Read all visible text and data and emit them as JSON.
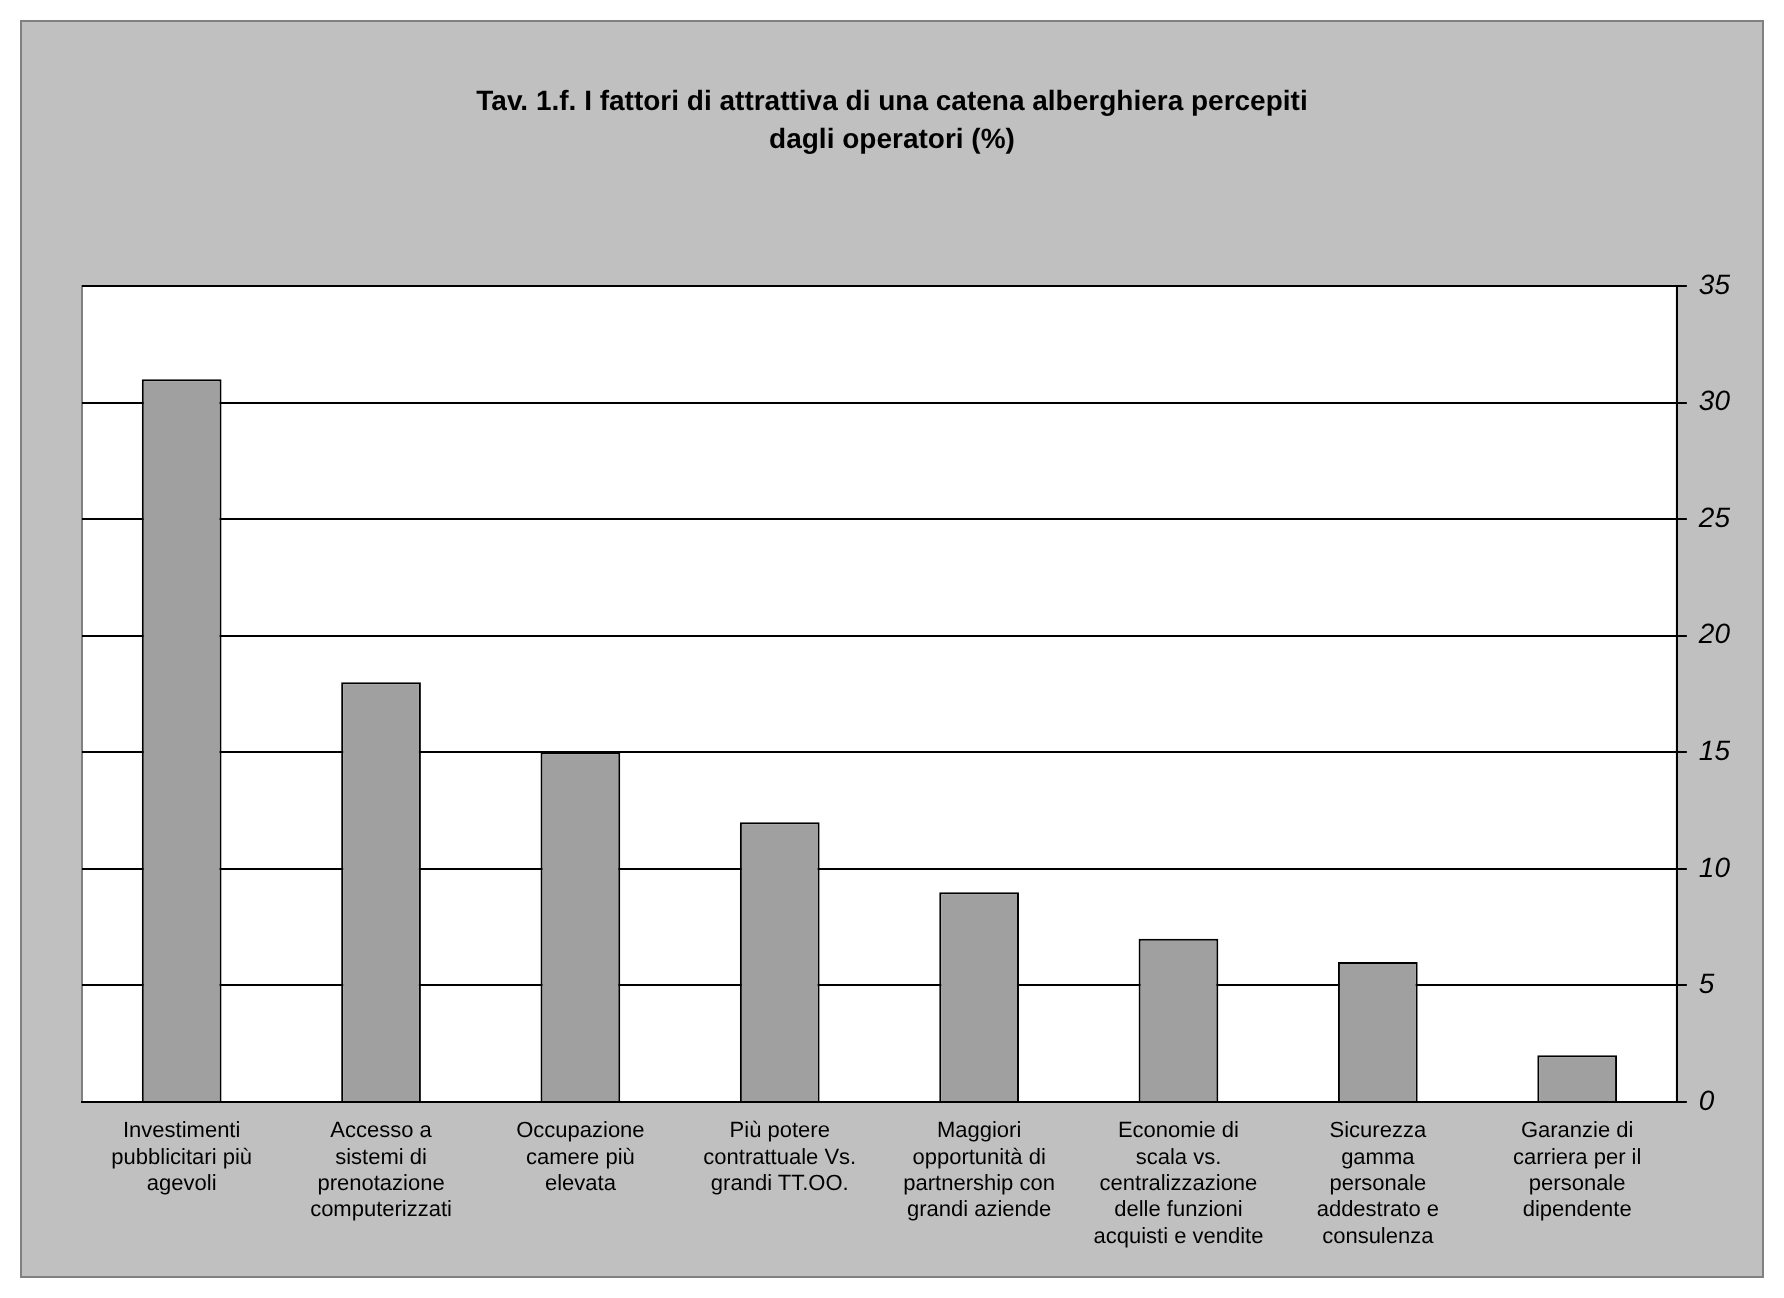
{
  "chart_data": {
    "type": "bar",
    "title": "Tav. 1.f. I fattori di attrattiva di una catena alberghiera percepiti dagli operatori (%)",
    "categories": [
      "Investimenti pubblicitari più agevoli",
      "Accesso a sistemi di prenotazione computerizzati",
      "Occupazione camere più elevata",
      "Più potere contrattuale Vs. grandi TT.OO.",
      "Maggiori opportunità di partnership con grandi aziende",
      "Economie di scala vs. centralizzazione delle funzioni acquisti e vendite",
      "Sicurezza gamma personale addestrato e consulenza",
      "Garanzie di carriera per il personale dipendente"
    ],
    "values": [
      31,
      18,
      15,
      12,
      9,
      7,
      6,
      2
    ],
    "color": "#a0a0a0",
    "ylim": [
      0,
      35
    ],
    "yticks": [
      0,
      5,
      10,
      15,
      20,
      25,
      30,
      35
    ],
    "grid": "y",
    "legend": false
  }
}
